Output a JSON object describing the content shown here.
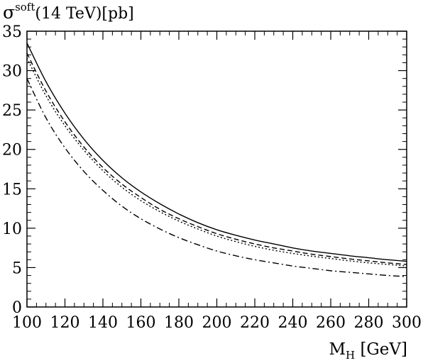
{
  "chart_data": {
    "type": "line",
    "ylabel_main": "σ",
    "ylabel_sup": "soft",
    "ylabel_rest": "(14 TeV)[pb]",
    "xlabel_main": "M",
    "xlabel_sub": "H",
    "xlabel_rest": " [GeV]",
    "xlim": [
      100,
      300
    ],
    "ylim": [
      0,
      35
    ],
    "x_ticks": [
      100,
      120,
      140,
      160,
      180,
      200,
      220,
      240,
      260,
      280,
      300
    ],
    "y_ticks": [
      0,
      5,
      10,
      15,
      20,
      25,
      30,
      35
    ],
    "grid": false,
    "legend": "none",
    "x": [
      100,
      110,
      120,
      130,
      140,
      150,
      160,
      170,
      180,
      190,
      200,
      210,
      220,
      230,
      240,
      250,
      260,
      270,
      280,
      290,
      300
    ],
    "series": [
      {
        "style": "solid",
        "values": [
          33.5,
          28.6,
          24.6,
          21.3,
          18.6,
          16.4,
          14.6,
          13.1,
          11.8,
          10.7,
          9.8,
          9.1,
          8.5,
          8.0,
          7.5,
          7.1,
          6.8,
          6.5,
          6.25,
          6.0,
          5.8
        ]
      },
      {
        "style": "dashed",
        "values": [
          32.2,
          27.4,
          23.5,
          20.3,
          17.7,
          15.6,
          13.9,
          12.4,
          11.2,
          10.2,
          9.3,
          8.6,
          8.0,
          7.5,
          7.1,
          6.7,
          6.4,
          6.1,
          5.85,
          5.6,
          5.4
        ]
      },
      {
        "style": "dotted",
        "values": [
          31.6,
          26.8,
          23.0,
          19.9,
          17.3,
          15.2,
          13.5,
          12.1,
          10.9,
          9.9,
          9.0,
          8.3,
          7.7,
          7.2,
          6.8,
          6.45,
          6.15,
          5.85,
          5.6,
          5.4,
          5.2
        ]
      },
      {
        "style": "dashdot",
        "values": [
          29.0,
          24.0,
          20.2,
          17.2,
          14.8,
          12.8,
          11.2,
          9.9,
          8.8,
          7.9,
          7.1,
          6.5,
          6.0,
          5.6,
          5.2,
          4.9,
          4.6,
          4.4,
          4.2,
          4.0,
          3.85
        ]
      }
    ]
  }
}
